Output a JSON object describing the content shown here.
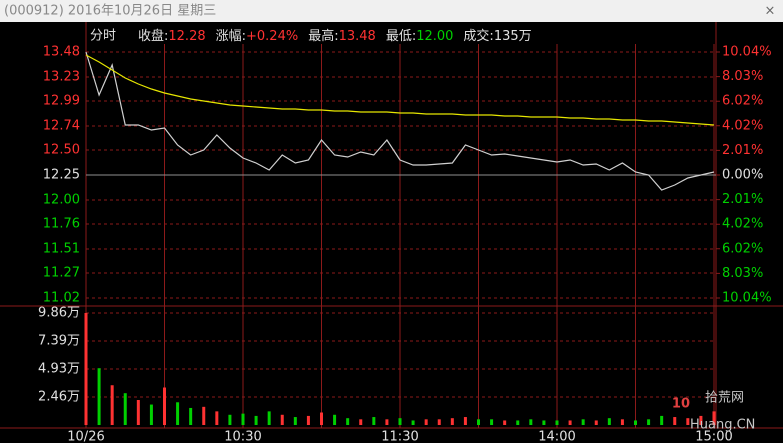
{
  "window": {
    "title": "(000912) 2016年10月26日 星期三",
    "close": "×"
  },
  "watermark": {
    "logo": "10",
    "site": "Huang.CN",
    "name": "拾荒网"
  },
  "chart_data": [
    {
      "type": "line",
      "label": "分时",
      "stats": [
        {
          "label": "收盘:",
          "value": "12.28",
          "color": "#ff3232"
        },
        {
          "label": "涨幅:",
          "value": "+0.24%",
          "color": "#ff3232"
        },
        {
          "label": "最高:",
          "value": "13.48",
          "color": "#ff3232"
        },
        {
          "label": "最低:",
          "value": "12.00",
          "color": "#00d000"
        },
        {
          "label": "成交:",
          "value": "135万",
          "color": "#e0e0e0"
        }
      ],
      "x": [
        0,
        5,
        10,
        15,
        20,
        25,
        30,
        35,
        40,
        45,
        50,
        55,
        60,
        65,
        70,
        75,
        80,
        85,
        90,
        95,
        100,
        105,
        110,
        115,
        120,
        125,
        130,
        135,
        140,
        145,
        150,
        155,
        160,
        165,
        170,
        175,
        180,
        185,
        190,
        195,
        200,
        205,
        210,
        215,
        220,
        225,
        230,
        235,
        240
      ],
      "series": [
        {
          "color": "#d0d0d0",
          "values": [
            13.48,
            13.05,
            13.35,
            12.75,
            12.75,
            12.7,
            12.72,
            12.55,
            12.45,
            12.5,
            12.65,
            12.52,
            12.42,
            12.37,
            12.3,
            12.45,
            12.37,
            12.4,
            12.6,
            12.45,
            12.43,
            12.48,
            12.45,
            12.6,
            12.4,
            12.35,
            12.35,
            12.36,
            12.37,
            12.55,
            12.5,
            12.45,
            12.46,
            12.44,
            12.42,
            12.4,
            12.38,
            12.4,
            12.35,
            12.36,
            12.3,
            12.37,
            12.28,
            12.25,
            12.1,
            12.15,
            12.22,
            12.25,
            12.28
          ]
        },
        {
          "color": "#e6e600",
          "values": [
            13.45,
            13.38,
            13.3,
            13.22,
            13.16,
            13.11,
            13.07,
            13.04,
            13.01,
            12.99,
            12.97,
            12.95,
            12.94,
            12.93,
            12.92,
            12.91,
            12.91,
            12.9,
            12.9,
            12.89,
            12.89,
            12.88,
            12.88,
            12.88,
            12.87,
            12.87,
            12.86,
            12.86,
            12.86,
            12.85,
            12.85,
            12.85,
            12.84,
            12.84,
            12.83,
            12.83,
            12.83,
            12.82,
            12.82,
            12.81,
            12.81,
            12.8,
            12.8,
            12.79,
            12.79,
            12.78,
            12.77,
            12.76,
            12.75
          ]
        }
      ],
      "xlim": [
        0,
        240
      ],
      "ylim": [
        11.02,
        13.48
      ],
      "yticks": [
        {
          "value": 11.02,
          "label": "11.02"
        },
        11.27,
        11.51,
        11.76,
        {
          "value": 12,
          "label": "12.00"
        },
        12.25,
        {
          "value": 12.5,
          "label": "12.50"
        },
        12.74,
        12.99,
        13.23,
        13.48
      ],
      "y2lim": [
        -10.04,
        10.04
      ],
      "y2ticks": [
        {
          "value": -10.04,
          "label": "10.04%"
        },
        {
          "value": -8.03,
          "label": "8.03%"
        },
        {
          "value": -6.02,
          "label": "6.02%"
        },
        {
          "value": -4.02,
          "label": "4.02%"
        },
        {
          "value": -2.01,
          "label": "2.01%"
        },
        {
          "value": 0,
          "label": "0.00%"
        },
        {
          "value": 2.01,
          "label": "2.01%"
        },
        {
          "value": 4.02,
          "label": "4.02%"
        },
        {
          "value": 6.02,
          "label": "6.02%"
        },
        {
          "value": 8.03,
          "label": "8.03%"
        },
        {
          "value": 10.04,
          "label": "10.04%"
        }
      ],
      "up_color": "#ff3232",
      "down_color": "#00d000",
      "grid": true
    },
    {
      "type": "bar",
      "values": [
        9.86,
        5.0,
        3.5,
        2.8,
        2.2,
        1.8,
        3.3,
        2.0,
        1.5,
        1.6,
        1.2,
        0.9,
        1.0,
        0.8,
        1.2,
        0.9,
        0.7,
        0.8,
        1.1,
        0.9,
        0.6,
        0.5,
        0.7,
        0.5,
        0.6,
        0.4,
        0.5,
        0.5,
        0.6,
        0.7,
        0.5,
        0.5,
        0.4,
        0.4,
        0.5,
        0.4,
        0.4,
        0.4,
        0.5,
        0.4,
        0.6,
        0.5,
        0.4,
        0.5,
        0.8,
        0.7,
        0.6,
        0.8,
        1.2
      ],
      "colors": [
        "#ff3232",
        "#00d000",
        "#ff3232",
        "#00d000",
        "#ff3232",
        "#00d000",
        "#ff3232",
        "#00d000",
        "#00d000",
        "#ff3232",
        "#ff3232",
        "#00d000",
        "#00d000",
        "#00d000",
        "#00d000",
        "#ff3232",
        "#00d000",
        "#ff3232",
        "#ff3232",
        "#00d000",
        "#00d000",
        "#ff3232",
        "#00d000",
        "#ff3232",
        "#00d000",
        "#00d000",
        "#ff3232",
        "#ff3232",
        "#ff3232",
        "#ff3232",
        "#00d000",
        "#00d000",
        "#ff3232",
        "#00d000",
        "#00d000",
        "#00d000",
        "#00d000",
        "#ff3232",
        "#00d000",
        "#ff3232",
        "#00d000",
        "#ff3232",
        "#00d000",
        "#00d000",
        "#00d000",
        "#ff3232",
        "#ff3232",
        "#ff3232",
        "#ff3232"
      ],
      "xlim": [
        0,
        240
      ],
      "xticks": [
        {
          "value": 0,
          "label": "10/26"
        },
        {
          "value": 30,
          "label": null
        },
        {
          "value": 60,
          "label": "10:30"
        },
        {
          "value": 90,
          "label": null
        },
        {
          "value": 120,
          "label": "11:30"
        },
        {
          "value": 150,
          "label": null
        },
        {
          "value": 180,
          "label": "14:00"
        },
        {
          "value": 210,
          "label": null
        },
        {
          "value": 240,
          "label": "15:00"
        }
      ],
      "ylim": [
        0,
        9.86
      ],
      "yticks": [
        {
          "value": 2.46,
          "label": "2.46万"
        },
        {
          "value": 4.93,
          "label": "4.93万"
        },
        {
          "value": 7.39,
          "label": "7.39万"
        },
        {
          "value": 9.86,
          "label": "9.86万"
        }
      ],
      "grid": true
    }
  ]
}
